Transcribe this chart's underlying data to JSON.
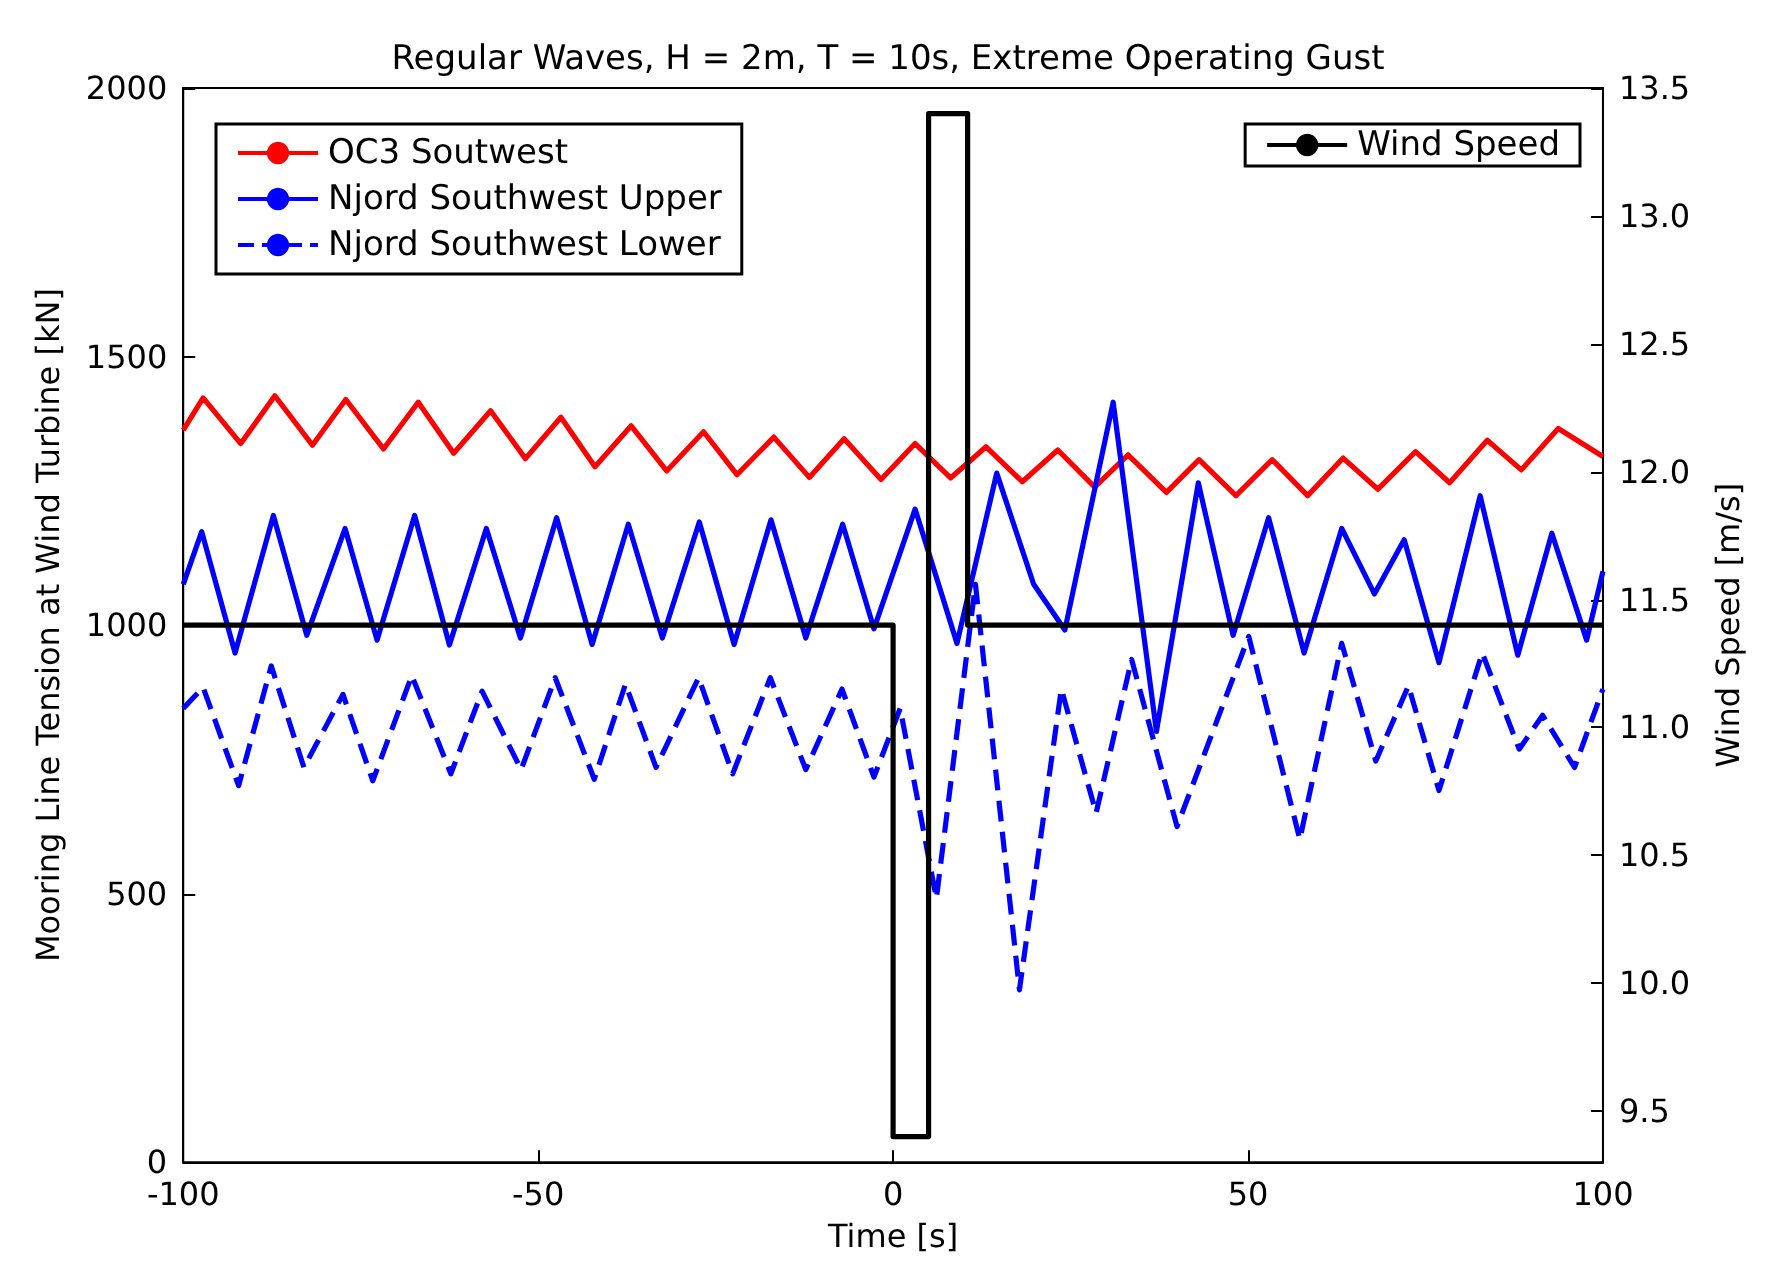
{
  "chart_data": {
    "type": "line",
    "title": "Regular Waves, H = 2m, T = 10s, Extreme Operating Gust",
    "xlabel": "Time [s]",
    "ylabel": "Mooring Line Tension at Wind Turbine [kN]",
    "y2label": "Wind Speed [m/s]",
    "xlim": [
      -100,
      100
    ],
    "xticks": [
      -100,
      -50,
      0,
      50,
      100
    ],
    "ylim": [
      0,
      2000
    ],
    "yticks": [
      0,
      500,
      1000,
      1500,
      2000
    ],
    "y2lim": [
      9.3,
      13.5
    ],
    "y2ticks": [
      9.5,
      {
        "value": 10,
        "label": "10.0"
      },
      10.5,
      {
        "value": 11,
        "label": "11.0"
      },
      11.5,
      {
        "value": 12,
        "label": "12.0"
      },
      12.5,
      {
        "value": 13,
        "label": "13.0"
      },
      13.5
    ],
    "grid": false,
    "legend": "top",
    "marker": "none",
    "series": [
      {
        "name": "OC3 Soutwest",
        "color": "#ff0000",
        "line_style": "solid",
        "x": [
          -100,
          -97.2,
          -91.9,
          -87.1,
          -81.8,
          -77.1,
          -71.8,
          -66.9,
          -61.9,
          -56.7,
          -51.8,
          -46.8,
          -42,
          -36.9,
          -31.9,
          -26.7,
          -22,
          -16.8,
          -11.8,
          -6.9,
          -1.7,
          3.1,
          8.1,
          13.1,
          18.2,
          23.2,
          28.4,
          33.1,
          38.5,
          43.1,
          48.3,
          53.4,
          58.4,
          63.4,
          68.3,
          73.6,
          78.4,
          83.7,
          88.5,
          93.7,
          100
        ],
        "values": [
          1363,
          1423,
          1338,
          1427,
          1335,
          1420,
          1328,
          1415,
          1320,
          1399,
          1310,
          1387,
          1295,
          1371,
          1287,
          1360,
          1280,
          1350,
          1275,
          1347,
          1271,
          1338,
          1274,
          1332,
          1267,
          1326,
          1257,
          1317,
          1247,
          1308,
          1241,
          1308,
          1241,
          1311,
          1253,
          1323,
          1265,
          1344,
          1289,
          1366,
          1314
        ]
      },
      {
        "name": "Njord Southwest Upper",
        "color": "#0000ff",
        "line_style": "solid",
        "x": [
          -100,
          -97.4,
          -92.7,
          -87.3,
          -82.6,
          -77.2,
          -72.7,
          -67.4,
          -62.5,
          -57.3,
          -52.5,
          -47.4,
          -42.4,
          -37.3,
          -32.5,
          -27.3,
          -22.4,
          -17.2,
          -12.3,
          -7.1,
          -2.7,
          3.1,
          9,
          14.6,
          19.8,
          24.2,
          31,
          37.1,
          43,
          47.9,
          52.9,
          57.9,
          63.2,
          67.8,
          72,
          76.9,
          82.7,
          88,
          92.8,
          97.7,
          100
        ],
        "values": [
          1076,
          1174,
          948,
          1204,
          981,
          1180,
          972,
          1204,
          963,
          1180,
          976,
          1200,
          964,
          1188,
          976,
          1192,
          964,
          1196,
          976,
          1188,
          993,
          1216,
          966,
          1283,
          1076,
          991,
          1415,
          802,
          1265,
          981,
          1200,
          948,
          1180,
          1058,
          1159,
          930,
          1241,
          944,
          1171,
          972,
          1100
        ]
      },
      {
        "name": "Njord Southwest Lower",
        "color": "#0000ff",
        "line_style": "dashed",
        "x": [
          -100,
          -97.2,
          -92.2,
          -87.6,
          -83,
          -77.5,
          -73.3,
          -67.8,
          -62.3,
          -57.9,
          -52.4,
          -47.6,
          -42.1,
          -37.7,
          -33.4,
          -27.4,
          -22.6,
          -17.3,
          -12.3,
          -7.2,
          -2.7,
          1,
          6.1,
          11.6,
          17.8,
          23.7,
          28.6,
          33.6,
          40,
          50.1,
          57.3,
          63.2,
          68,
          72.6,
          76.9,
          83,
          88.2,
          91.5,
          96,
          100
        ],
        "values": [
          845,
          884,
          701,
          924,
          735,
          871,
          710,
          906,
          723,
          877,
          731,
          902,
          713,
          890,
          735,
          902,
          723,
          902,
          731,
          881,
          717,
          845,
          491,
          1076,
          321,
          881,
          650,
          936,
          625,
          979,
          601,
          966,
          747,
          887,
          692,
          948,
          769,
          832,
          735,
          881
        ]
      },
      {
        "name": "Wind Speed",
        "color": "#000000",
        "line_style": "solid",
        "axis": "y2",
        "x": [
          -100,
          0,
          0,
          5,
          5,
          10.5,
          10.5,
          100
        ],
        "values": [
          11.4,
          11.4,
          9.4,
          9.4,
          13.4,
          13.4,
          11.4,
          11.4
        ]
      }
    ]
  }
}
